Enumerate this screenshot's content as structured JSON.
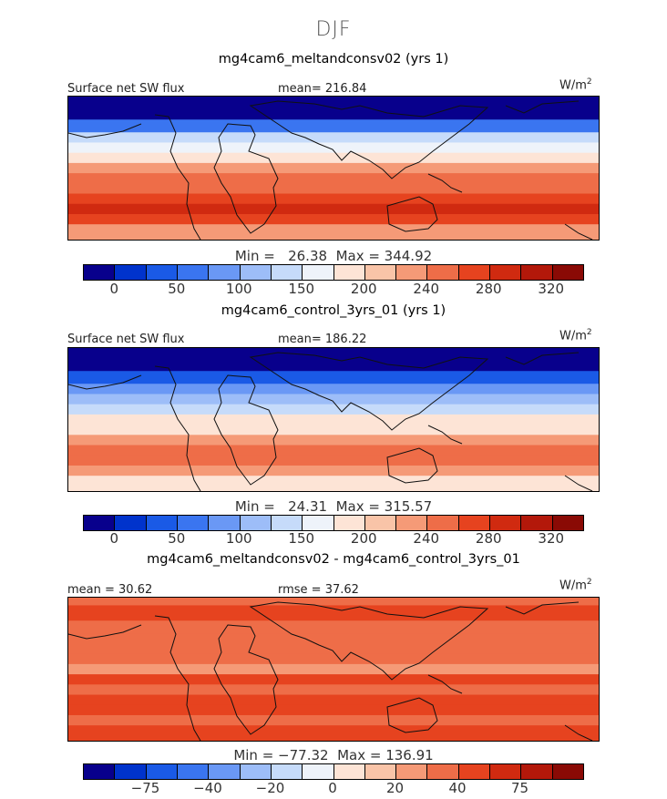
{
  "season": "DJF",
  "panels": [
    {
      "title": "mg4cam6_meltandconsv02 (yrs 1)",
      "variable": "Surface net SW flux",
      "stat": "mean= 216.84",
      "unit": "W/m",
      "unit_exp": "2",
      "minmax": "Min =   26.38  Max = 344.92",
      "ticks": [
        "0",
        "50",
        "100",
        "150",
        "200",
        "240",
        "280",
        "320"
      ],
      "palette": [
        "#08008c",
        "#0033cc",
        "#1a5ae6",
        "#3a75f0",
        "#6a98f5",
        "#9dbdf8",
        "#c6dbfa",
        "#eef3fa",
        "#fde4d6",
        "#f9c4a8",
        "#f59a77",
        "#ee6d48",
        "#e6431f",
        "#d02a10",
        "#b3180a",
        "#8a0a05"
      ],
      "bands": [
        {
          "lat": 80,
          "value": 5
        },
        {
          "lat": 65,
          "value": 18
        },
        {
          "lat": 50,
          "value": 80
        },
        {
          "lat": 40,
          "value": 150
        },
        {
          "lat": 30,
          "value": 175
        },
        {
          "lat": 20,
          "value": 200
        },
        {
          "lat": 10,
          "value": 250
        },
        {
          "lat": 0,
          "value": 275
        },
        {
          "lat": -10,
          "value": 295
        },
        {
          "lat": -20,
          "value": 320
        },
        {
          "lat": -30,
          "value": 335
        },
        {
          "lat": -40,
          "value": 300
        },
        {
          "lat": -50,
          "value": 270
        }
      ]
    },
    {
      "title": "mg4cam6_control_3yrs_01 (yrs 1)",
      "variable": "Surface net SW flux",
      "stat": "mean= 186.22",
      "unit": "W/m",
      "unit_exp": "2",
      "minmax": "Min =   24.31  Max = 315.57",
      "ticks": [
        "0",
        "50",
        "100",
        "150",
        "200",
        "240",
        "280",
        "320"
      ],
      "palette": [
        "#08008c",
        "#0033cc",
        "#1a5ae6",
        "#3a75f0",
        "#6a98f5",
        "#9dbdf8",
        "#c6dbfa",
        "#eef3fa",
        "#fde4d6",
        "#f9c4a8",
        "#f59a77",
        "#ee6d48",
        "#e6431f",
        "#d02a10",
        "#b3180a",
        "#8a0a05"
      ],
      "bands": [
        {
          "lat": 80,
          "value": 5
        },
        {
          "lat": 65,
          "value": 15
        },
        {
          "lat": 50,
          "value": 60
        },
        {
          "lat": 40,
          "value": 110
        },
        {
          "lat": 30,
          "value": 140
        },
        {
          "lat": 20,
          "value": 170
        },
        {
          "lat": 10,
          "value": 200
        },
        {
          "lat": 0,
          "value": 220
        },
        {
          "lat": -10,
          "value": 250
        },
        {
          "lat": -20,
          "value": 275
        },
        {
          "lat": -30,
          "value": 285
        },
        {
          "lat": -40,
          "value": 250
        },
        {
          "lat": -50,
          "value": 220
        }
      ]
    },
    {
      "title": "mg4cam6_meltandconsv02 - mg4cam6_control_3yrs_01",
      "variable": "mean =  30.62",
      "stat": "rmse =  37.62",
      "unit": "W/m",
      "unit_exp": "2",
      "minmax": "Min = −77.32  Max = 136.91",
      "ticks": [
        "−75",
        "−40",
        "−20",
        "0",
        "20",
        "40",
        "75"
      ],
      "palette": [
        "#08008c",
        "#0033cc",
        "#1a5ae6",
        "#3a75f0",
        "#6a98f5",
        "#9dbdf8",
        "#c6dbfa",
        "#eef3fa",
        "#fde4d6",
        "#f9c4a8",
        "#f59a77",
        "#ee6d48",
        "#e6431f",
        "#d02a10",
        "#b3180a",
        "#8a0a05"
      ],
      "bands": [
        {
          "lat": 80,
          "value": 30
        },
        {
          "lat": 65,
          "value": 40
        },
        {
          "lat": 50,
          "value": 35
        },
        {
          "lat": 40,
          "value": 30
        },
        {
          "lat": 30,
          "value": 35
        },
        {
          "lat": 20,
          "value": 30
        },
        {
          "lat": 10,
          "value": 25
        },
        {
          "lat": 0,
          "value": 40
        },
        {
          "lat": -10,
          "value": 35
        },
        {
          "lat": -20,
          "value": 40
        },
        {
          "lat": -30,
          "value": 45
        },
        {
          "lat": -40,
          "value": 35
        },
        {
          "lat": -50,
          "value": 40
        }
      ]
    }
  ]
}
